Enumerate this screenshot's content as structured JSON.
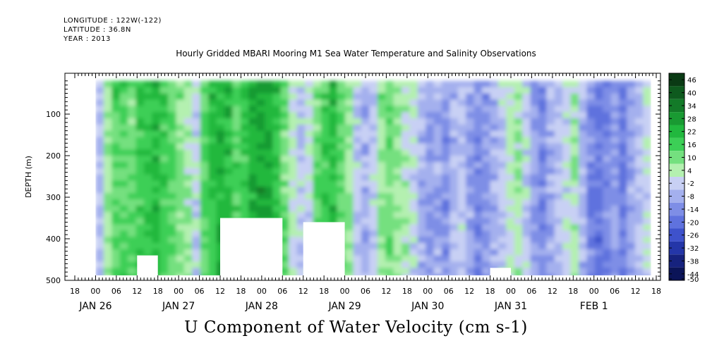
{
  "header": {
    "longitude": "LONGITUDE : 122W(-122)",
    "latitude": "LATITUDE : 36.8N",
    "year": "YEAR : 2013"
  },
  "chart_data": {
    "type": "heatmap",
    "title": "Hourly Gridded MBARI Mooring M1 Sea Water Temperature and Salinity Observations",
    "xlabel": "U Component of Water Velocity (cm s-1)",
    "ylabel": "DEPTH (m)",
    "ylim": [
      500,
      0
    ],
    "y_ticks": [
      100,
      200,
      300,
      400,
      500
    ],
    "x_hour_ticks": [
      "18",
      "00",
      "06",
      "12",
      "18",
      "00",
      "06",
      "12",
      "18",
      "00",
      "06",
      "12",
      "18",
      "00",
      "06",
      "12",
      "18",
      "00",
      "06",
      "12",
      "18",
      "00",
      "06",
      "12",
      "18",
      "00",
      "06",
      "12",
      "18"
    ],
    "x_day_labels": [
      "JAN 26",
      "JAN 27",
      "JAN 28",
      "JAN 29",
      "JAN 30",
      "JAN 31",
      "FEB  1"
    ],
    "colorbar": {
      "levels": [
        "46",
        "40",
        "34",
        "28",
        "22",
        "16",
        "10",
        "4",
        "-2",
        "-8",
        "-14",
        "-20",
        "-26",
        "-32",
        "-38",
        "-44",
        "-50"
      ],
      "colors": [
        "#0a3a14",
        "#0e5a1e",
        "#137a28",
        "#199a32",
        "#21b83e",
        "#3ccf56",
        "#74e07f",
        "#b4f0b0",
        "#c8d0f4",
        "#a4b0ee",
        "#7e8ee6",
        "#5f72de",
        "#3e52cc",
        "#2436a8",
        "#16227e",
        "#0b1458"
      ]
    },
    "field_note": "",
    "columns_u": [
      -8,
      4,
      10,
      12,
      8,
      14,
      16,
      18,
      14,
      10,
      6,
      2,
      -4,
      10,
      16,
      20,
      18,
      12,
      14,
      20,
      24,
      22,
      16,
      8,
      -2,
      -6,
      -4,
      8,
      14,
      18,
      10,
      4,
      -6,
      -10,
      -6,
      4,
      8,
      4,
      0,
      -4,
      -10,
      -14,
      -12,
      -16,
      -10,
      -6,
      -12,
      -18,
      -14,
      -10,
      -6,
      -2,
      2,
      -6,
      -14,
      -18,
      -12,
      -8,
      -4,
      2,
      -10,
      -18,
      -22,
      -18,
      -14,
      -20,
      -12,
      -8,
      -4
    ],
    "white_mask": [
      {
        "day_hours": [
          12,
          18
        ],
        "depth_from": 440
      },
      {
        "day_hours": [
          36,
          54
        ],
        "depth_from": 350
      },
      {
        "day_hours": [
          60,
          72
        ],
        "depth_from": 360
      },
      {
        "day_hours": [
          114,
          120
        ],
        "depth_from": 470
      }
    ]
  }
}
